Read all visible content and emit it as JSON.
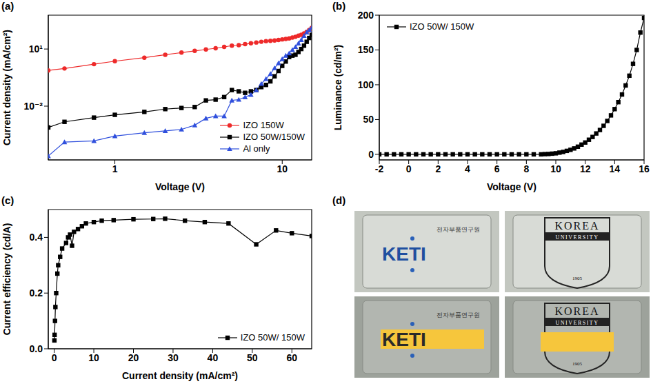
{
  "chart_data": [
    {
      "panel_label": "(a)",
      "type": "line",
      "x_label": "Voltage (V)",
      "y_label": "Current density (mA/cm²)",
      "log": true,
      "legend": "lower right",
      "x": [
        0.4,
        0.5,
        0.75,
        1,
        1.5,
        2,
        2.5,
        3,
        3.5,
        4,
        4.5,
        5,
        5.5,
        6,
        6.5,
        7,
        7.5,
        8,
        8.5,
        9,
        9.5,
        10,
        10.5,
        11,
        11.5,
        12,
        12.5,
        13,
        13.5,
        14,
        14.5,
        15
      ],
      "series": [
        {
          "name": "IZO 150W",
          "color": "#ee2a2a",
          "marker": "circle",
          "values": [
            0.75,
            0.95,
            1.6,
            2.3,
            3.5,
            5,
            6.5,
            8,
            9.5,
            11,
            13,
            15,
            16,
            18,
            20,
            22,
            24,
            26,
            27,
            28,
            30,
            32,
            34,
            36,
            40,
            44,
            50,
            56,
            66,
            80,
            100,
            130
          ]
        },
        {
          "name": "IZO 50W/150W",
          "color": "#000000",
          "marker": "square",
          "values": [
            0.00076,
            0.0015,
            0.0025,
            0.0035,
            0.005,
            0.007,
            0.008,
            0.009,
            0.02,
            0.022,
            0.03,
            0.07,
            0.06,
            0.05,
            0.06,
            0.07,
            0.1,
            0.13,
            0.2,
            0.37,
            0.7,
            1.3,
            2.2,
            3.8,
            4.5,
            5,
            7,
            10,
            15,
            24,
            38,
            55
          ]
        },
        {
          "name": "Al only",
          "color": "#3050dd",
          "marker": "triangle",
          "values": [
            2.4e-05,
            0.00013,
            0.00015,
            0.00027,
            0.0004,
            0.0005,
            0.0006,
            0.001,
            0.0023,
            0.003,
            0.003,
            0.02,
            0.022,
            0.03,
            0.04,
            0.07,
            0.15,
            0.27,
            0.5,
            1,
            1.8,
            3,
            4.5,
            6,
            9,
            13,
            20,
            30,
            50,
            75,
            100,
            130
          ]
        }
      ],
      "xlim": [
        0.4,
        15
      ],
      "xticks": [
        1,
        10
      ],
      "ylim": [
        1.5e-05,
        600
      ],
      "yticks": [
        {
          "value": 0.01,
          "label": "10⁻²"
        },
        {
          "value": 10,
          "label": "10¹"
        }
      ]
    },
    {
      "panel_label": "(b)",
      "type": "line",
      "x_label": "Voltage (V)",
      "y_label": "Luminance (cd/m²)",
      "legend": "upper left",
      "x": [
        -2,
        -1.5,
        -1,
        -0.5,
        0,
        0.5,
        1,
        1.5,
        2,
        2.5,
        3,
        3.5,
        4,
        4.5,
        5,
        5.5,
        6,
        6.5,
        7,
        7.5,
        8,
        8.5,
        9,
        9.25,
        9.5,
        9.75,
        10,
        10.25,
        10.5,
        10.75,
        11,
        11.25,
        11.5,
        11.75,
        12,
        12.25,
        12.5,
        12.75,
        13,
        13.25,
        13.5,
        13.75,
        14,
        14.25,
        14.5,
        14.75,
        15,
        15.25,
        15.5,
        15.75,
        16
      ],
      "series": [
        {
          "name": "IZO 50W/ 150W",
          "color": "#000000",
          "marker": "square",
          "values": [
            0,
            0,
            0,
            0,
            0,
            0,
            0,
            0,
            0,
            0,
            0,
            0,
            0,
            0,
            0,
            0,
            0,
            0,
            0,
            0,
            0,
            0,
            0,
            0.3,
            0.5,
            1,
            1.5,
            2.5,
            3.5,
            5,
            6.5,
            8.5,
            11,
            14,
            17,
            21,
            25,
            30,
            35,
            41,
            48,
            56,
            65,
            75,
            86,
            99,
            113,
            130,
            150,
            175,
            196
          ]
        }
      ],
      "xlim": [
        -2,
        16
      ],
      "xticks": [
        -2,
        0,
        2,
        4,
        6,
        8,
        10,
        12,
        14,
        16
      ],
      "ylim": [
        -8,
        200
      ],
      "yticks": [
        0,
        50,
        100,
        150,
        200
      ]
    },
    {
      "panel_label": "(c)",
      "type": "line",
      "x_label": "Current density (mA/cm²)",
      "y_label": "Current efficiency (cd/A)",
      "legend": "lower right",
      "x": [
        0.05,
        0.1,
        0.2,
        0.3,
        0.5,
        0.8,
        1,
        1.5,
        2,
        3,
        3.5,
        4,
        4.5,
        5,
        6,
        7,
        8,
        10,
        12,
        15,
        20,
        25,
        28,
        33,
        38,
        44,
        51,
        56,
        60,
        65
      ],
      "series": [
        {
          "name": "IZO 50W/ 150W",
          "color": "#000000",
          "marker": "square",
          "values": [
            0.03,
            0.05,
            0.1,
            0.15,
            0.2,
            0.27,
            0.3,
            0.33,
            0.36,
            0.38,
            0.4,
            0.41,
            0.37,
            0.42,
            0.43,
            0.44,
            0.45,
            0.455,
            0.46,
            0.462,
            0.465,
            0.466,
            0.467,
            0.46,
            0.455,
            0.45,
            0.375,
            0.425,
            0.415,
            0.405
          ]
        }
      ],
      "xlim": [
        -1.5,
        65
      ],
      "xticks": [
        0,
        10,
        20,
        30,
        40,
        50,
        60
      ],
      "ylim": [
        0,
        0.5
      ],
      "yticks": [
        {
          "value": 0,
          "label": "0.0"
        },
        0.2,
        0.4
      ]
    }
  ],
  "panel_d": {
    "panel_label": "(d)",
    "photos": [
      {
        "texts": [
          "KETI",
          "전자부품연구원"
        ]
      },
      {
        "texts": [
          "KOREA",
          "UNIVERSITY",
          "1905"
        ]
      },
      {
        "texts": [
          "KETI",
          "전자부품연구원"
        ]
      },
      {
        "texts": [
          "KOREA",
          "UNIVERSITY",
          "1905"
        ]
      }
    ]
  }
}
